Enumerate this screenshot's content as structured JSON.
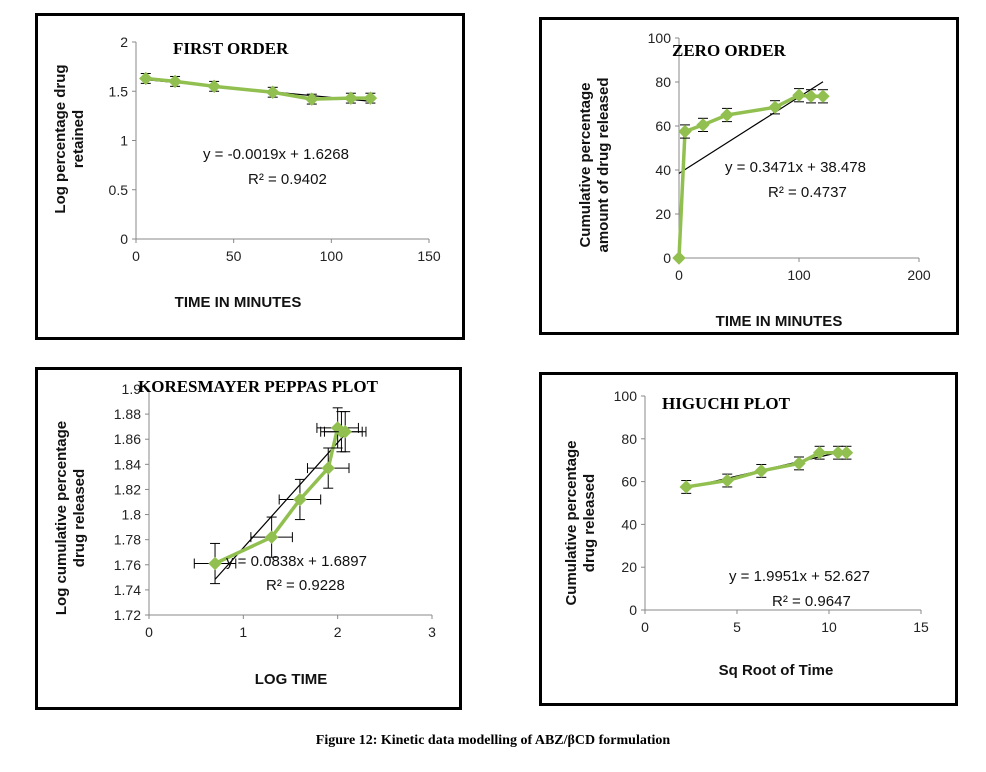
{
  "figure_caption": "Figure 12: Kinetic data modelling of ABZ/βCD formulation",
  "marker_color": "#92C050",
  "line_color": "#92C050",
  "trend_color": "#000000",
  "chart_data": [
    {
      "type": "scatter",
      "title": "FIRST ORDER",
      "xlabel": "TIME IN MINUTES",
      "ylabel": "Log percentage drug retained",
      "xlim": [
        0,
        150
      ],
      "ylim": [
        0,
        2
      ],
      "xticks": [
        "0",
        "50",
        "100",
        "150"
      ],
      "yticks": [
        "0",
        "0.5",
        "1",
        "1.5",
        "2"
      ],
      "series": [
        {
          "x": [
            5,
            20,
            40,
            70,
            90,
            110,
            120
          ],
          "y": [
            1.63,
            1.6,
            1.55,
            1.49,
            1.42,
            1.43,
            1.43
          ],
          "err": [
            0.05,
            0.05,
            0.05,
            0.05,
            0.05,
            0.05,
            0.05
          ]
        }
      ],
      "trendline": {
        "slope": -0.0019,
        "intercept": 1.6268,
        "x_range": [
          5,
          120
        ]
      },
      "equation": "y = -0.0019x + 1.6268",
      "r2": "R² = 0.9402",
      "grid": false,
      "legend": "none"
    },
    {
      "type": "scatter",
      "title": "ZERO  ORDER",
      "xlabel": "TIME IN MINUTES",
      "ylabel": "Cumulative percentage amount of drug released",
      "xlim": [
        0,
        200
      ],
      "ylim": [
        0,
        100
      ],
      "xticks": [
        "0",
        "100",
        "200"
      ],
      "yticks": [
        "0",
        "20",
        "40",
        "60",
        "80",
        "100"
      ],
      "series": [
        {
          "x": [
            0,
            5,
            20,
            40,
            80,
            100,
            110,
            120
          ],
          "y": [
            0,
            57.5,
            60.5,
            65,
            68.5,
            74,
            73.5,
            73.5
          ],
          "err": [
            0,
            3,
            3,
            3,
            3,
            3,
            3,
            3
          ]
        }
      ],
      "trendline": {
        "slope": 0.3471,
        "intercept": 38.478,
        "x_range": [
          0,
          120
        ]
      },
      "equation": "y = 0.3471x + 38.478",
      "r2": "R² = 0.4737",
      "grid": false,
      "legend": "none"
    },
    {
      "type": "scatter",
      "title": "KORESMAYER PEPPAS PLOT",
      "xlabel": "LOG TIME",
      "ylabel": "Log cumulative percentage drug released",
      "xlim": [
        0,
        3
      ],
      "ylim": [
        1.72,
        1.9
      ],
      "xticks": [
        "0",
        "1",
        "2",
        "3"
      ],
      "yticks": [
        "1.72",
        "1.74",
        "1.76",
        "1.78",
        "1.8",
        "1.82",
        "1.84",
        "1.86",
        "1.88",
        "1.9"
      ],
      "series": [
        {
          "x": [
            0.7,
            1.3,
            1.6,
            1.9,
            2.0,
            2.04,
            2.08
          ],
          "y": [
            1.761,
            1.782,
            1.812,
            1.837,
            1.869,
            1.866,
            1.866
          ],
          "err": [
            0.016,
            0.016,
            0.016,
            0.016,
            0.016,
            0.016,
            0.016
          ],
          "xerr": [
            0.22,
            0.22,
            0.22,
            0.22,
            0.22,
            0.22,
            0.22
          ]
        }
      ],
      "trendline": {
        "slope": 0.0838,
        "intercept": 1.6897,
        "x_range": [
          0.7,
          2.08
        ]
      },
      "equation": "y = 0.0838x + 1.6897",
      "r2": "R² = 0.9228",
      "grid": false,
      "legend": "none"
    },
    {
      "type": "scatter",
      "title": "HIGUCHI PLOT",
      "xlabel": "Sq Root of Time",
      "ylabel": "Cumulative percentage drug released",
      "xlim": [
        0,
        15
      ],
      "ylim": [
        0,
        100
      ],
      "xticks": [
        "0",
        "5",
        "10",
        "15"
      ],
      "yticks": [
        "0",
        "20",
        "40",
        "60",
        "80",
        "100"
      ],
      "series": [
        {
          "x": [
            2.24,
            4.47,
            6.32,
            8.37,
            9.49,
            10.49,
            10.95
          ],
          "y": [
            57.5,
            60.5,
            65,
            68.5,
            73.5,
            73.5,
            73.5
          ],
          "err": [
            3,
            3,
            3,
            3,
            3,
            3,
            3
          ]
        }
      ],
      "trendline": {
        "slope": 1.9951,
        "intercept": 52.627,
        "x_range": [
          2.24,
          10.95
        ]
      },
      "equation": "y = 1.9951x + 52.627",
      "r2": "R² = 0.9647",
      "grid": false,
      "legend": "none"
    }
  ]
}
